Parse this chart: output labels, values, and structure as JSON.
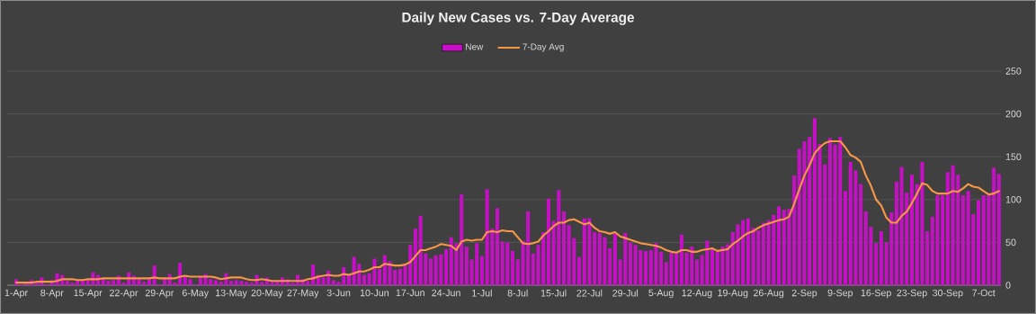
{
  "chart_data": {
    "type": "bar",
    "title": "Daily New Cases vs. 7-Day Average",
    "categories": [
      "1-Apr",
      null,
      null,
      null,
      null,
      null,
      null,
      "8-Apr",
      null,
      null,
      null,
      null,
      null,
      null,
      "15-Apr",
      null,
      null,
      null,
      null,
      null,
      null,
      "22-Apr",
      null,
      null,
      null,
      null,
      null,
      null,
      "29-Apr",
      null,
      null,
      null,
      null,
      null,
      null,
      "6-May",
      null,
      null,
      null,
      null,
      null,
      null,
      "13-May",
      null,
      null,
      null,
      null,
      null,
      null,
      "20-May",
      null,
      null,
      null,
      null,
      null,
      null,
      "27-May",
      null,
      null,
      null,
      null,
      null,
      null,
      "3-Jun",
      null,
      null,
      null,
      null,
      null,
      null,
      "10-Jun",
      null,
      null,
      null,
      null,
      null,
      null,
      "17-Jun",
      null,
      null,
      null,
      null,
      null,
      null,
      "24-Jun",
      null,
      null,
      null,
      null,
      null,
      null,
      "1-Jul",
      null,
      null,
      null,
      null,
      null,
      null,
      "8-Jul",
      null,
      null,
      null,
      null,
      null,
      null,
      "15-Jul",
      null,
      null,
      null,
      null,
      null,
      null,
      "22-Jul",
      null,
      null,
      null,
      null,
      null,
      null,
      "29-Jul",
      null,
      null,
      null,
      null,
      null,
      null,
      "5-Aug",
      null,
      null,
      null,
      null,
      null,
      null,
      "12-Aug",
      null,
      null,
      null,
      null,
      null,
      null,
      "19-Aug",
      null,
      null,
      null,
      null,
      null,
      null,
      "26-Aug",
      null,
      null,
      null,
      null,
      null,
      null,
      "2-Sep",
      null,
      null,
      null,
      null,
      null,
      null,
      "9-Sep",
      null,
      null,
      null,
      null,
      null,
      null,
      "16-Sep",
      null,
      null,
      null,
      null,
      null,
      null,
      "23-Sep",
      null,
      null,
      null,
      null,
      null,
      null,
      "30-Sep",
      null,
      null,
      null,
      null,
      null,
      null,
      "7-Oct",
      null,
      null,
      null
    ],
    "series": [
      {
        "name": "New",
        "color": "#c80fc8",
        "values": [
          7,
          1,
          3,
          6,
          3,
          9,
          1,
          6,
          14,
          12,
          5,
          3,
          6,
          6,
          6,
          15,
          12,
          8,
          5,
          6,
          11,
          3,
          15,
          11,
          7,
          4,
          7,
          23,
          1,
          8,
          13,
          3,
          26,
          10,
          7,
          1,
          10,
          13,
          7,
          6,
          4,
          14,
          5,
          6,
          5,
          4,
          3,
          12,
          4,
          9,
          4,
          5,
          9,
          7,
          3,
          12,
          7,
          5,
          24,
          12,
          9,
          17,
          6,
          4,
          21,
          12,
          33,
          25,
          12,
          14,
          31,
          19,
          35,
          28,
          18,
          19,
          23,
          47,
          66,
          81,
          37,
          31,
          35,
          36,
          42,
          56,
          49,
          106,
          45,
          30,
          49,
          34,
          112,
          66,
          90,
          51,
          50,
          40,
          30,
          52,
          86,
          37,
          47,
          62,
          101,
          75,
          111,
          86,
          70,
          55,
          33,
          78,
          78,
          62,
          61,
          56,
          43,
          60,
          30,
          61,
          50,
          47,
          41,
          40,
          41,
          49,
          39,
          27,
          38,
          38,
          59,
          38,
          45,
          30,
          35,
          52,
          42,
          39,
          45,
          48,
          62,
          71,
          76,
          78,
          67,
          64,
          73,
          76,
          82,
          92,
          88,
          89,
          128,
          159,
          168,
          173,
          195,
          165,
          141,
          172,
          164,
          173,
          110,
          144,
          134,
          118,
          86,
          68,
          49,
          63,
          50,
          85,
          121,
          138,
          108,
          129,
          118,
          144,
          63,
          80,
          105,
          105,
          132,
          140,
          129,
          105,
          110,
          83,
          99,
          105,
          105,
          137,
          130
        ]
      },
      {
        "name": "7-Day Avg",
        "type": "line",
        "color": "#f79646",
        "values": [
          3,
          3,
          3,
          3,
          4,
          4,
          4,
          4,
          5,
          7,
          7,
          7,
          6,
          6,
          7,
          7,
          7,
          8,
          8,
          8,
          8,
          8,
          8,
          8,
          8,
          8,
          8,
          9,
          8,
          8,
          8,
          8,
          10,
          11,
          10,
          10,
          10,
          10,
          10,
          9,
          7,
          8,
          9,
          9,
          9,
          7,
          6,
          6,
          7,
          6,
          5,
          5,
          5,
          5,
          5,
          5,
          5,
          7,
          8,
          10,
          11,
          12,
          11,
          11,
          13,
          12,
          14,
          16,
          16,
          18,
          21,
          21,
          25,
          24,
          23,
          23,
          24,
          27,
          34,
          41,
          41,
          43,
          45,
          48,
          47,
          46,
          41,
          51,
          53,
          52,
          53,
          53,
          62,
          63,
          62,
          64,
          63,
          63,
          56,
          49,
          48,
          49,
          51,
          58,
          63,
          69,
          73,
          73,
          76,
          77,
          74,
          71,
          73,
          67,
          63,
          62,
          60,
          62,
          57,
          55,
          53,
          51,
          49,
          48,
          47,
          46,
          44,
          41,
          39,
          38,
          41,
          41,
          39,
          39,
          41,
          42,
          43,
          40,
          41,
          42,
          48,
          52,
          57,
          61,
          63,
          67,
          70,
          72,
          74,
          76,
          77,
          80,
          95,
          112,
          128,
          140,
          154,
          161,
          166,
          168,
          168,
          168,
          161,
          152,
          149,
          144,
          128,
          116,
          100,
          93,
          79,
          73,
          73,
          81,
          86,
          96,
          107,
          119,
          117,
          110,
          107,
          107,
          107,
          110,
          109,
          113,
          118,
          115,
          114,
          110,
          106,
          107,
          110
        ]
      }
    ],
    "ylim": [
      0,
      250
    ],
    "yticks": [
      0,
      50,
      100,
      150,
      200,
      250
    ],
    "grid": "y",
    "legend": "top"
  }
}
